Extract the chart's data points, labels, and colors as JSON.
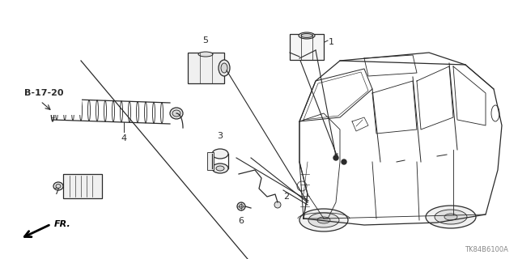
{
  "bg_color": "#ffffff",
  "line_color": "#2a2a2a",
  "fig_width": 6.4,
  "fig_height": 3.2,
  "dpi": 100,
  "watermark": "TK84B6100A",
  "ref_label": "B-17-20",
  "fr_label": "FR."
}
